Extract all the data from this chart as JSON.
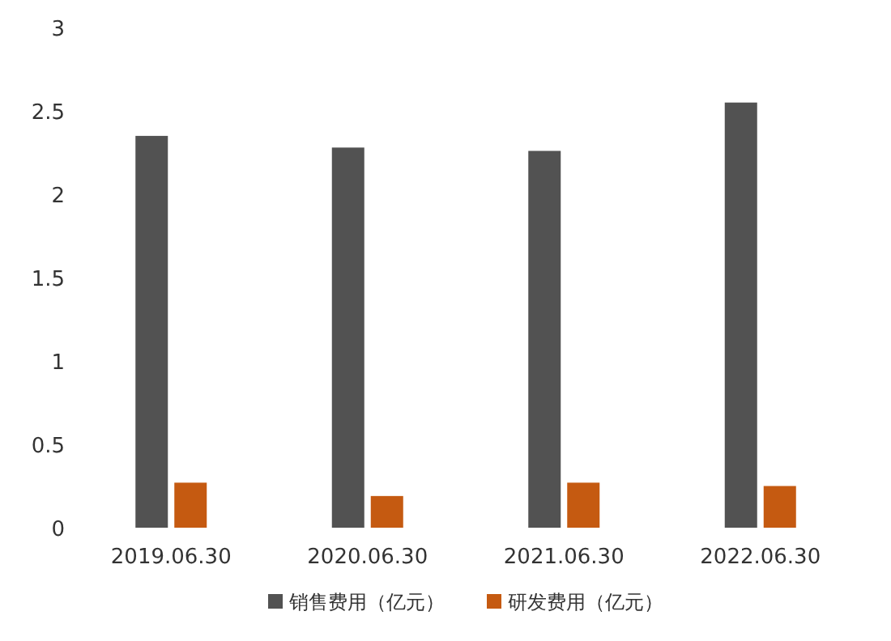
{
  "chart_data": {
    "type": "bar",
    "categories": [
      "2019.06.30",
      "2020.06.30",
      "2021.06.30",
      "2022.06.30"
    ],
    "series": [
      {
        "name": "销售费用（亿元）",
        "color": "#525252",
        "values": [
          2.35,
          2.28,
          2.26,
          2.55
        ]
      },
      {
        "name": "研发费用（亿元）",
        "color": "#c55a11",
        "values": [
          0.27,
          0.19,
          0.27,
          0.25
        ]
      }
    ],
    "ylim": [
      0,
      3
    ],
    "yticks": [
      0,
      0.5,
      1,
      1.5,
      2,
      2.5,
      3
    ],
    "grid": false,
    "legend": "bottom"
  }
}
